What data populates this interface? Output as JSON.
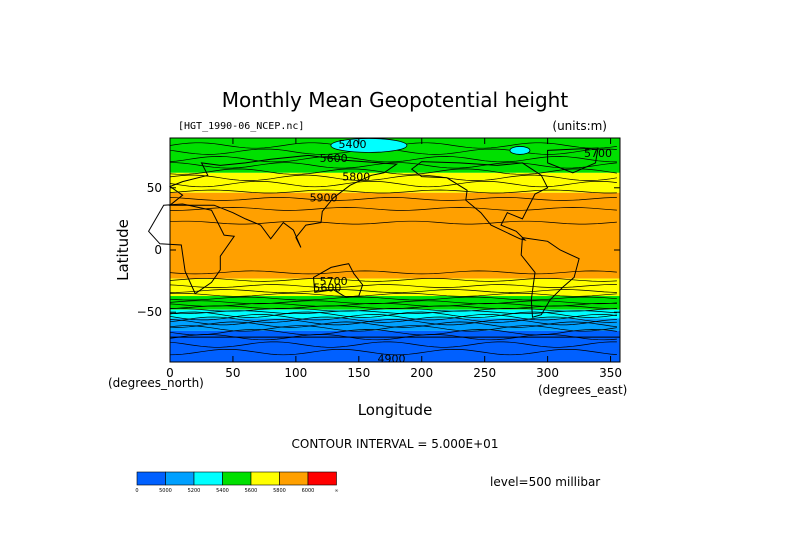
{
  "chart_data": {
    "type": "heatmap",
    "title": "Monthly Mean Geopotential height",
    "file_label": "[HGT_1990-06_NCEP.nc]",
    "units_label": "(units:m)",
    "xlabel": "Longitude",
    "ylabel": "Latitude",
    "x_units": "(degrees_east)",
    "y_units": "(degrees_north)",
    "xlim": [
      0,
      357.5
    ],
    "ylim": [
      -90,
      90
    ],
    "x_ticks": [
      0,
      50,
      100,
      150,
      200,
      250,
      300,
      350
    ],
    "y_ticks": [
      50,
      0,
      -50
    ],
    "x_tick_labels": [
      "0",
      "50",
      "100",
      "150",
      "200",
      "250",
      "300",
      "350"
    ],
    "y_tick_labels": [
      "50",
      "0",
      "−50"
    ],
    "contour_interval_text": "CONTOUR INTERVAL = 5.000E+01",
    "level_text": "level=500 millibar",
    "contour_labels": [
      {
        "text": "5400",
        "x": 145,
        "y": 85
      },
      {
        "text": "5600",
        "x": 130,
        "y": 74
      },
      {
        "text": "5700",
        "x": 340,
        "y": 78
      },
      {
        "text": "5800",
        "x": 148,
        "y": 59
      },
      {
        "text": "5900",
        "x": 122,
        "y": 42
      },
      {
        "text": "5600",
        "x": 125,
        "y": -30
      },
      {
        "text": "5700",
        "x": 130,
        "y": -25
      },
      {
        "text": "4900",
        "x": 176,
        "y": -87
      }
    ],
    "colorbar": {
      "colors": [
        "#0060ff",
        "#00a0ff",
        "#00ffff",
        "#00e000",
        "#ffff00",
        "#ffa000",
        "#ff0000"
      ],
      "bounds": [
        "0",
        "5000",
        "5200",
        "5400",
        "5600",
        "5800",
        "6000",
        "∞"
      ]
    },
    "bands": [
      {
        "lat_top": 90,
        "lat_bottom": 62,
        "color": "#00e000"
      },
      {
        "lat_top": 62,
        "lat_bottom": 46,
        "color": "#ffff00"
      },
      {
        "lat_top": 46,
        "lat_bottom": -23,
        "color": "#ffa000"
      },
      {
        "lat_top": -23,
        "lat_bottom": -37,
        "color": "#ffff00"
      },
      {
        "lat_top": -37,
        "lat_bottom": -48,
        "color": "#00e000"
      },
      {
        "lat_top": -48,
        "lat_bottom": -55,
        "color": "#00ffff"
      },
      {
        "lat_top": -55,
        "lat_bottom": -65,
        "color": "#00a0ff"
      },
      {
        "lat_top": -65,
        "lat_bottom": -90,
        "color": "#0060ff"
      }
    ],
    "grid": false
  }
}
